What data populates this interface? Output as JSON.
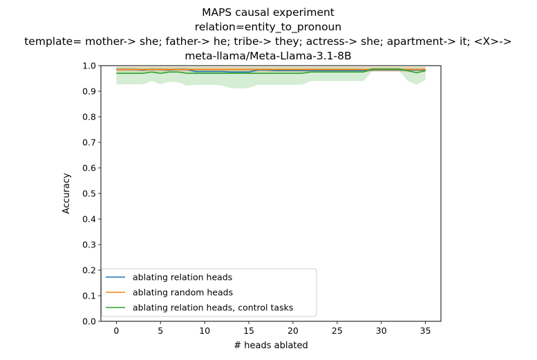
{
  "chart_data": {
    "type": "line",
    "title_lines": [
      "MAPS causal experiment",
      "relation=entity_to_pronoun",
      "template= mother-> she; father-> he; tribe-> they; actress-> she; apartment-> it; <X>->",
      "meta-llama/Meta-Llama-3.1-8B"
    ],
    "xlabel": "# heads ablated",
    "ylabel": "Accuracy",
    "xlim": [
      -1.75,
      36.75
    ],
    "ylim": [
      0.0,
      1.0
    ],
    "xticks": [
      0,
      5,
      10,
      15,
      20,
      25,
      30,
      35
    ],
    "yticks": [
      0.0,
      0.1,
      0.2,
      0.3,
      0.4,
      0.5,
      0.6,
      0.7,
      0.8,
      0.9,
      1.0
    ],
    "grid": false,
    "legend_position": "lower-left",
    "series": [
      {
        "name": "ablating relation heads",
        "color": "#1f77b4",
        "x": [
          0,
          1,
          2,
          3,
          4,
          5,
          6,
          7,
          8,
          9,
          10,
          11,
          12,
          13,
          14,
          15,
          16,
          17,
          18,
          19,
          20,
          21,
          22,
          23,
          24,
          25,
          26,
          27,
          28,
          29,
          30,
          31,
          32,
          33,
          34,
          35
        ],
        "y": [
          0.985,
          0.985,
          0.985,
          0.983,
          0.985,
          0.985,
          0.983,
          0.985,
          0.985,
          0.977,
          0.977,
          0.977,
          0.977,
          0.975,
          0.975,
          0.975,
          0.983,
          0.983,
          0.981,
          0.981,
          0.981,
          0.981,
          0.981,
          0.981,
          0.981,
          0.981,
          0.981,
          0.981,
          0.981,
          0.983,
          0.983,
          0.983,
          0.983,
          0.983,
          0.983,
          0.983
        ],
        "band_lower": [
          0.98,
          0.98,
          0.98,
          0.978,
          0.98,
          0.98,
          0.978,
          0.98,
          0.98,
          0.972,
          0.972,
          0.972,
          0.972,
          0.97,
          0.97,
          0.97,
          0.978,
          0.978,
          0.976,
          0.976,
          0.976,
          0.976,
          0.976,
          0.976,
          0.976,
          0.976,
          0.976,
          0.976,
          0.976,
          0.978,
          0.978,
          0.978,
          0.978,
          0.978,
          0.978,
          0.978
        ],
        "band_upper": [
          0.99,
          0.99,
          0.99,
          0.988,
          0.99,
          0.99,
          0.988,
          0.99,
          0.99,
          0.982,
          0.982,
          0.982,
          0.982,
          0.98,
          0.98,
          0.98,
          0.988,
          0.988,
          0.986,
          0.986,
          0.986,
          0.986,
          0.986,
          0.986,
          0.986,
          0.986,
          0.986,
          0.986,
          0.986,
          0.988,
          0.988,
          0.988,
          0.988,
          0.988,
          0.988,
          0.988
        ]
      },
      {
        "name": "ablating random heads",
        "color": "#ff7f0e",
        "x": [
          0,
          1,
          2,
          3,
          4,
          5,
          6,
          7,
          8,
          9,
          10,
          11,
          12,
          13,
          14,
          15,
          16,
          17,
          18,
          19,
          20,
          21,
          22,
          23,
          24,
          25,
          26,
          27,
          28,
          29,
          30,
          31,
          32,
          33,
          34,
          35
        ],
        "y": [
          0.985,
          0.985,
          0.985,
          0.985,
          0.985,
          0.985,
          0.985,
          0.985,
          0.985,
          0.985,
          0.985,
          0.985,
          0.985,
          0.985,
          0.985,
          0.985,
          0.985,
          0.985,
          0.985,
          0.985,
          0.985,
          0.985,
          0.985,
          0.985,
          0.985,
          0.985,
          0.985,
          0.985,
          0.985,
          0.985,
          0.985,
          0.985,
          0.985,
          0.985,
          0.985,
          0.985
        ],
        "band_lower": [
          0.975,
          0.975,
          0.975,
          0.975,
          0.975,
          0.975,
          0.975,
          0.975,
          0.975,
          0.975,
          0.975,
          0.975,
          0.975,
          0.975,
          0.975,
          0.975,
          0.975,
          0.975,
          0.975,
          0.975,
          0.975,
          0.975,
          0.975,
          0.975,
          0.975,
          0.975,
          0.975,
          0.975,
          0.975,
          0.975,
          0.975,
          0.975,
          0.975,
          0.975,
          0.975,
          0.975
        ],
        "band_upper": [
          0.996,
          0.996,
          0.996,
          0.996,
          0.996,
          0.996,
          0.996,
          0.996,
          0.996,
          0.996,
          0.996,
          0.996,
          0.996,
          0.996,
          0.996,
          0.996,
          0.996,
          0.996,
          0.996,
          0.996,
          0.996,
          0.996,
          0.996,
          0.996,
          0.996,
          0.996,
          0.996,
          0.996,
          0.996,
          0.996,
          0.996,
          0.996,
          0.996,
          0.996,
          0.996,
          0.996
        ]
      },
      {
        "name": "ablating relation heads, control tasks",
        "color": "#2ca02c",
        "x": [
          0,
          1,
          2,
          3,
          4,
          5,
          6,
          7,
          8,
          9,
          10,
          11,
          12,
          13,
          14,
          15,
          16,
          17,
          18,
          19,
          20,
          21,
          22,
          23,
          24,
          25,
          26,
          27,
          28,
          29,
          30,
          31,
          32,
          33,
          34,
          35
        ],
        "y": [
          0.97,
          0.97,
          0.97,
          0.97,
          0.975,
          0.97,
          0.975,
          0.975,
          0.97,
          0.97,
          0.97,
          0.97,
          0.97,
          0.97,
          0.97,
          0.97,
          0.97,
          0.97,
          0.97,
          0.97,
          0.97,
          0.97,
          0.975,
          0.975,
          0.975,
          0.975,
          0.975,
          0.975,
          0.975,
          0.987,
          0.987,
          0.987,
          0.987,
          0.98,
          0.972,
          0.98
        ],
        "band_lower": [
          0.927,
          0.927,
          0.927,
          0.927,
          0.94,
          0.927,
          0.937,
          0.935,
          0.922,
          0.925,
          0.925,
          0.925,
          0.922,
          0.912,
          0.91,
          0.913,
          0.925,
          0.925,
          0.925,
          0.925,
          0.925,
          0.925,
          0.94,
          0.94,
          0.94,
          0.94,
          0.94,
          0.94,
          0.94,
          0.98,
          0.98,
          0.98,
          0.98,
          0.94,
          0.925,
          0.945
        ],
        "band_upper": [
          0.995,
          0.995,
          0.995,
          0.995,
          0.995,
          0.995,
          0.995,
          0.995,
          0.995,
          0.995,
          0.995,
          0.995,
          0.995,
          0.995,
          0.995,
          0.995,
          0.995,
          0.995,
          0.995,
          0.995,
          0.995,
          0.995,
          0.995,
          0.995,
          0.995,
          0.995,
          0.995,
          0.995,
          0.995,
          0.995,
          0.995,
          0.995,
          0.995,
          0.995,
          0.995,
          0.995
        ]
      }
    ]
  }
}
